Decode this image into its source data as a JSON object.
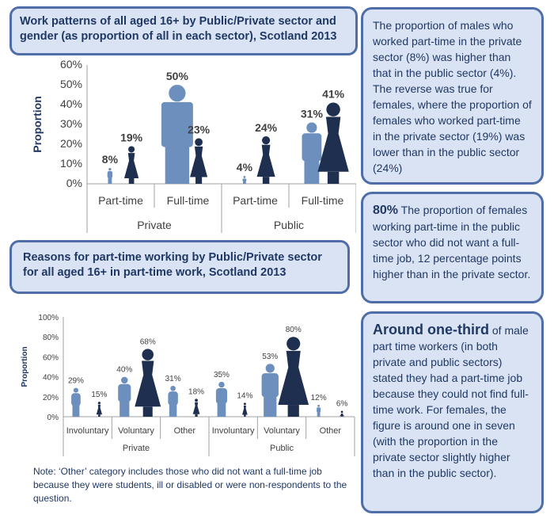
{
  "chart1": {
    "title": "Work patterns of all aged 16+ by Public/Private sector and gender (as proportion of all in each sector), Scotland 2013",
    "ylabel": "Proportion",
    "yticks": [
      "0%",
      "10%",
      "20%",
      "30%",
      "40%",
      "50%",
      "60%"
    ]
  },
  "chart2": {
    "title": "Reasons for part-time working by Public/Private sector for all aged 16+ in part-time work, Scotland 2013",
    "ylabel": "Proportion",
    "yticks": [
      "0%",
      "20%",
      "40%",
      "60%",
      "80%",
      "100%"
    ]
  },
  "note": "Note: ‘Other’ category includes those who did not want a full-time job because they were students, ill or disabled or were non-respondents to the question.",
  "side": {
    "box1": "The proportion of males who worked part-time in the private sector (8%) was higher than that in the public sector (4%). The reverse was true for females, where the proportion of females who worked part-time in the private sector (19%) was lower than in the public sector (24%)",
    "box2_stat": "80%",
    "box2_text": " The proportion of females working part-time in the public sector who did not want a full-time job, 12 percentage points higher than in the private sector.",
    "box3_stat": "Around one-third",
    "box3_text": " of male part time workers (in both private and public sectors) stated they had a part-time job because they could not find full-time work. For females, the figure is around one in seven (with the proportion in the private sector slightly higher than in the public sector)."
  },
  "colors": {
    "male": "#6d8fbe",
    "female": "#1f2f4f",
    "box_bg": "#dae3f3",
    "box_border": "#4f6ea8"
  },
  "chart_data": [
    {
      "type": "bar",
      "ylim": [
        0,
        60
      ],
      "groups": [
        "Private",
        "Public"
      ],
      "categories": [
        "Part-time",
        "Full-time",
        "Part-time",
        "Full-time"
      ],
      "series": [
        {
          "values": [
            8,
            null,
            4,
            null
          ],
          "labels": [
            "8%",
            "",
            "4%",
            ""
          ],
          "icon": "male"
        },
        {
          "values": [
            19,
            null,
            24,
            null
          ],
          "labels": [
            "19%",
            "",
            "24%",
            ""
          ],
          "icon": "female"
        },
        {
          "values": [
            null,
            50,
            null,
            31
          ],
          "labels": [
            "",
            "50%",
            "",
            "31%"
          ],
          "icon": "male"
        },
        {
          "values": [
            null,
            23,
            null,
            41
          ],
          "labels": [
            "",
            "23%",
            "",
            "41%"
          ],
          "icon": "female"
        }
      ]
    },
    {
      "type": "bar",
      "ylim": [
        0,
        100
      ],
      "groups": [
        "Private",
        "Public"
      ],
      "categories": [
        "Involuntary",
        "Voluntary",
        "Other",
        "Involuntary",
        "Voluntary",
        "Other"
      ],
      "series": [
        {
          "values": [
            29,
            40,
            31,
            35,
            53,
            12
          ],
          "labels": [
            "29%",
            "40%",
            "31%",
            "35%",
            "53%",
            "12%"
          ],
          "icon": "male"
        },
        {
          "values": [
            15,
            68,
            18,
            14,
            80,
            6
          ],
          "labels": [
            "15%",
            "68%",
            "18%",
            "14%",
            "80%",
            "6%"
          ],
          "icon": "female"
        }
      ]
    }
  ]
}
